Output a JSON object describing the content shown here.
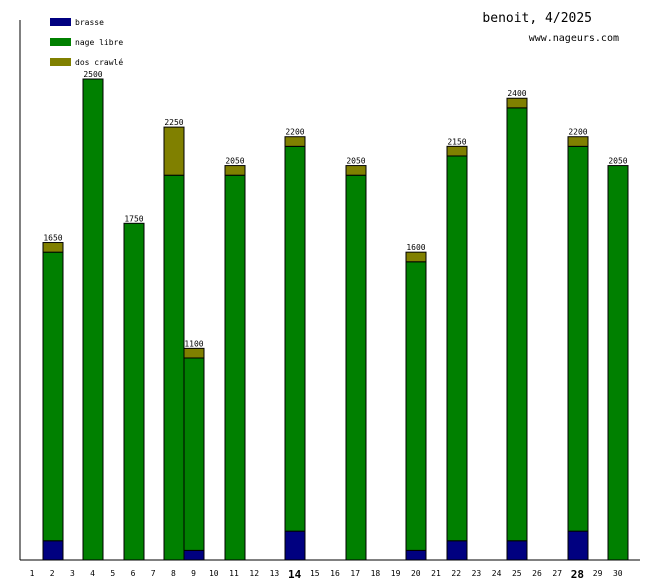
{
  "title": "benoit, 4/2025",
  "site": "www.nageurs.com",
  "colors": {
    "background": "#ffffff",
    "axis": "#000000",
    "bar_outline": "#000000",
    "text": "#000000"
  },
  "chart_data": {
    "type": "bar",
    "stacked": true,
    "title": "benoit, 4/2025",
    "xlabel": "",
    "ylabel": "",
    "ylim": [
      0,
      2600
    ],
    "grid": false,
    "legend_position": "top-left",
    "categories": [
      "1",
      "2",
      "3",
      "4",
      "5",
      "6",
      "7",
      "8",
      "9",
      "10",
      "11",
      "12",
      "13",
      "14",
      "15",
      "16",
      "17",
      "18",
      "19",
      "20",
      "21",
      "22",
      "23",
      "24",
      "25",
      "26",
      "27",
      "28",
      "29",
      "30"
    ],
    "highlighted_categories": [
      "14",
      "28"
    ],
    "series": [
      {
        "name": "brasse",
        "color": "#000080",
        "values": [
          0,
          100,
          0,
          0,
          0,
          0,
          0,
          0,
          50,
          0,
          0,
          0,
          0,
          150,
          0,
          0,
          0,
          0,
          0,
          50,
          0,
          100,
          0,
          0,
          100,
          0,
          0,
          150,
          0,
          0
        ]
      },
      {
        "name": "nage libre",
        "color": "#008000",
        "values": [
          0,
          1500,
          0,
          2500,
          0,
          1750,
          0,
          2000,
          1000,
          0,
          2000,
          0,
          0,
          2000,
          0,
          0,
          2000,
          0,
          0,
          1500,
          0,
          2000,
          0,
          0,
          2250,
          0,
          0,
          2000,
          0,
          2050
        ]
      },
      {
        "name": "dos crawlé",
        "color": "#808000",
        "values": [
          0,
          50,
          0,
          0,
          0,
          0,
          0,
          250,
          50,
          0,
          50,
          0,
          0,
          50,
          0,
          0,
          50,
          0,
          0,
          50,
          0,
          50,
          0,
          0,
          50,
          0,
          0,
          50,
          0,
          0
        ]
      }
    ],
    "totals": [
      0,
      1650,
      0,
      2500,
      0,
      1750,
      0,
      2250,
      1100,
      0,
      2050,
      0,
      0,
      2200,
      0,
      0,
      2050,
      0,
      0,
      1600,
      0,
      2150,
      0,
      0,
      2400,
      0,
      0,
      2200,
      0,
      2050
    ]
  }
}
